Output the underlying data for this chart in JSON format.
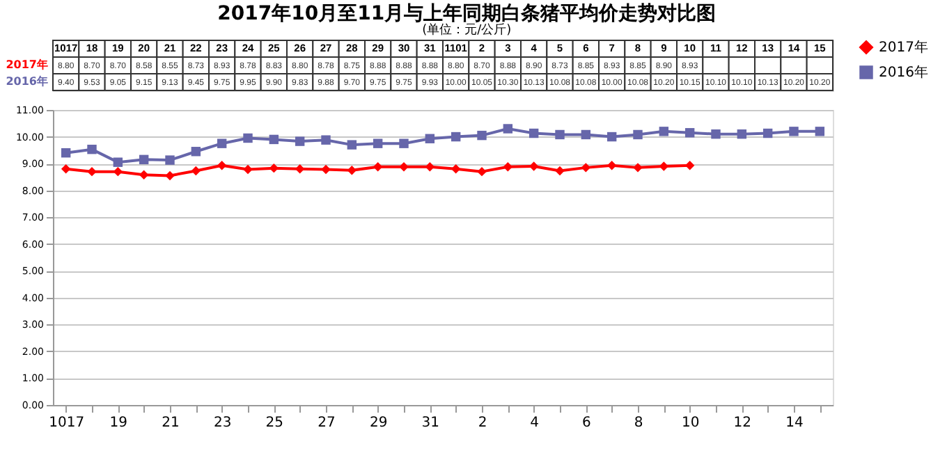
{
  "chart_data": {
    "type": "line",
    "title": "2017年10月至11月与上年同期白条猪平均价走势对比图",
    "subtitle": "(单位：元/公斤)",
    "categories": [
      "1017",
      "18",
      "19",
      "20",
      "21",
      "22",
      "23",
      "24",
      "25",
      "26",
      "27",
      "28",
      "29",
      "30",
      "31",
      "1101",
      "2",
      "3",
      "4",
      "5",
      "6",
      "7",
      "8",
      "9",
      "10",
      "11",
      "12",
      "13",
      "14",
      "15"
    ],
    "series": [
      {
        "name": "2017年",
        "color": "#ff0000",
        "marker": "diamond",
        "values": [
          8.8,
          8.7,
          8.7,
          8.58,
          8.55,
          8.73,
          8.93,
          8.78,
          8.83,
          8.8,
          8.78,
          8.75,
          8.88,
          8.88,
          8.88,
          8.8,
          8.7,
          8.88,
          8.9,
          8.73,
          8.85,
          8.93,
          8.85,
          8.9,
          8.93,
          null,
          null,
          null,
          null,
          null
        ],
        "value_labels": [
          "8.80",
          "8.70",
          "8.70",
          "8.58",
          "8.55",
          "8.73",
          "8.93",
          "8.78",
          "8.83",
          "8.80",
          "8.78",
          "8.75",
          "8.88",
          "8.88",
          "8.88",
          "8.80",
          "8.70",
          "8.88",
          "8.90",
          "8.73",
          "8.85",
          "8.93",
          "8.85",
          "8.90",
          "8.93",
          null,
          null,
          null,
          null,
          null
        ]
      },
      {
        "name": "2016年",
        "color": "#6666aa",
        "marker": "square",
        "values": [
          9.4,
          9.53,
          9.05,
          9.15,
          9.13,
          9.45,
          9.75,
          9.95,
          9.9,
          9.83,
          9.88,
          9.7,
          9.75,
          9.75,
          9.93,
          10.0,
          10.05,
          10.3,
          10.13,
          10.08,
          10.08,
          10.0,
          10.08,
          10.2,
          10.15,
          10.1,
          10.1,
          10.13,
          10.2,
          10.2
        ],
        "value_labels": [
          "9.40",
          "9.53",
          "9.05",
          "9.15",
          "9.13",
          "9.45",
          "9.75",
          "9.95",
          "9.90",
          "9.83",
          "9.88",
          "9.70",
          "9.75",
          "9.75",
          "9.93",
          "10.00",
          "10.05",
          "10.30",
          "10.13",
          "10.08",
          "10.08",
          "10.00",
          "10.08",
          "10.20",
          "10.15",
          "10.10",
          "10.10",
          "10.13",
          "10.20",
          "10.20"
        ]
      }
    ],
    "ylim": [
      0,
      11
    ],
    "yticks": [
      {
        "value": 0,
        "label": "0.00"
      },
      {
        "value": 1,
        "label": "1.00"
      },
      {
        "value": 2,
        "label": "2.00"
      },
      {
        "value": 3,
        "label": "3.00"
      },
      {
        "value": 4,
        "label": "4.00"
      },
      {
        "value": 5,
        "label": "5.00"
      },
      {
        "value": 6,
        "label": "6.00"
      },
      {
        "value": 7,
        "label": "7.00"
      },
      {
        "value": 8,
        "label": "8.00"
      },
      {
        "value": 9,
        "label": "9.00"
      },
      {
        "value": 10,
        "label": "10.00"
      },
      {
        "value": 11,
        "label": "11.00"
      }
    ],
    "grid": "y",
    "legend": "right",
    "line_style": "solid"
  }
}
